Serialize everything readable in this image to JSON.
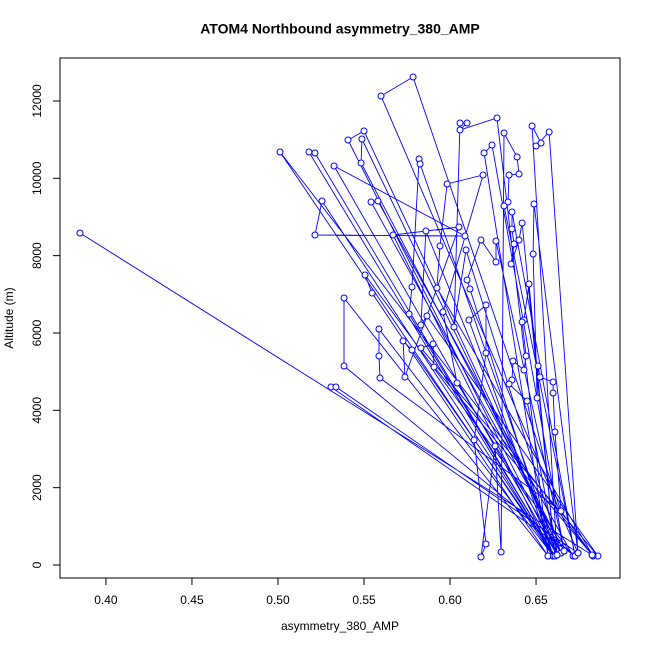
{
  "chart_data": {
    "type": "scatter-line",
    "title": "ATOM4 Northbound asymmetry_380_AMP",
    "x_label": "asymmetry_380_AMP",
    "y_label": "Altitude (m)",
    "color": "#0000ff",
    "xlim": [
      0.3733,
      0.6988
    ],
    "ylim": [
      -336,
      13111
    ],
    "xticks": [
      {
        "value": 0.4,
        "label": "0.40"
      },
      0.45,
      {
        "value": 0.5,
        "label": "0.50"
      },
      0.55,
      {
        "value": 0.6,
        "label": "0.60"
      },
      0.65
    ],
    "yticks": [
      0,
      2000,
      4000,
      6000,
      8000,
      10000,
      12000
    ],
    "x": [
      0.3849,
      0.6826,
      0.5012,
      0.6599,
      0.518,
      0.5215,
      0.661,
      0.5256,
      0.5215,
      0.6087,
      0.5326,
      0.6622,
      0.5407,
      0.55,
      0.6645,
      0.5488,
      0.5483,
      0.6663,
      0.5541,
      0.5581,
      0.6715,
      0.5506,
      0.5547,
      0.657,
      0.5384,
      0.5384,
      0.6727,
      0.5308,
      0.5337,
      0.6744,
      0.5599,
      0.5785,
      0.6645,
      0.5593,
      0.5587,
      0.5587,
      0.66,
      0.5669,
      0.6052,
      0.5738,
      0.5727,
      0.5779,
      0.661,
      0.5762,
      0.5779,
      0.582,
      0.5826,
      0.6622,
      0.586,
      0.5831,
      0.5866,
      0.686,
      0.5831,
      0.5901,
      0.5907,
      0.6831,
      0.5924,
      0.5942,
      0.5983,
      0.6192,
      0.5959,
      0.6041,
      0.6645,
      0.6093,
      0.6023,
      0.6058,
      0.6099,
      0.6058,
      0.6273,
      0.657,
      0.6198,
      0.6244,
      0.6663,
      0.6267,
      0.6267,
      0.618,
      0.6099,
      0.6116,
      0.66,
      0.611,
      0.6209,
      0.6209,
      0.614,
      0.6209,
      0.618,
      0.6262,
      0.6297,
      0.6314,
      0.639,
      0.6401,
      0.6343,
      0.6337,
      0.6314,
      0.6727,
      0.636,
      0.636,
      0.6372,
      0.6355,
      0.6401,
      0.6419,
      0.661,
      0.6459,
      0.643,
      0.6419,
      0.6442,
      0.643,
      0.6366,
      0.636,
      0.6343,
      0.6448,
      0.6622,
      0.6477,
      0.6529,
      0.65,
      0.6576,
      0.6744,
      0.6488,
      0.6483,
      0.6506,
      0.6512,
      0.6523,
      0.6599,
      0.6599,
      0.661,
      0.6645,
      0.6826
    ],
    "y": [
      8585,
      259,
      10680,
      233,
      10680,
      10655,
      233,
      9413,
      8534,
      8508,
      10318,
      259,
      10990,
      11223,
      310,
      11016,
      10396,
      362,
      9387,
      9413,
      233,
      7499,
      7034,
      233,
      6905,
      5146,
      233,
      4603,
      4603,
      310,
      12128,
      12619,
      1396,
      4836,
      5405,
      6103,
      233,
      8534,
      8740,
      4862,
      5793,
      5560,
      233,
      6491,
      7189,
      10499,
      10370,
      259,
      8637,
      6206,
      6439,
      233,
      5612,
      5715,
      5120,
      233,
      7163,
      8249,
      9853,
      10085,
      6543,
      4706,
      310,
      8146,
      6155,
      11430,
      11430,
      11249,
      11559,
      233,
      10655,
      10861,
      362,
      8379,
      7835,
      8405,
      7370,
      7137,
      233,
      6336,
      6724,
      5483,
      3232,
      543,
      207,
      3077,
      336,
      11171,
      10551,
      10111,
      10085,
      9387,
      9284,
      233,
      9129,
      8689,
      8301,
      7784,
      8405,
      8844,
      233,
      7267,
      6336,
      6284,
      5405,
      5043,
      5276,
      4784,
      4681,
      4241,
      259,
      11352,
      10913,
      10835,
      11197,
      310,
      9335,
      8043,
      4319,
      5146,
      4862,
      4732,
      4448,
      3439,
      1396,
      259
    ]
  }
}
